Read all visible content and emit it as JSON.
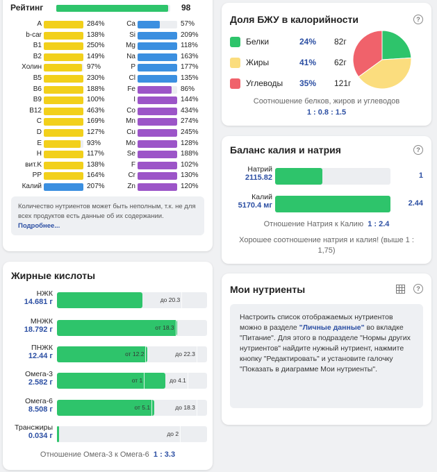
{
  "vitamins": {
    "rating_label": "Рейтинг",
    "rating_value": "98",
    "rating_fraction": 0.98,
    "left": [
      {
        "name": "A",
        "pct": "284%",
        "fill": 1.0,
        "color": "#f2d01b"
      },
      {
        "name": "b-car",
        "pct": "138%",
        "fill": 1.0,
        "color": "#f2d01b"
      },
      {
        "name": "B1",
        "pct": "250%",
        "fill": 1.0,
        "color": "#f2d01b"
      },
      {
        "name": "B2",
        "pct": "149%",
        "fill": 1.0,
        "color": "#f2d01b"
      },
      {
        "name": "Холин",
        "pct": "97%",
        "fill": 0.97,
        "color": "#f2d01b"
      },
      {
        "name": "B5",
        "pct": "230%",
        "fill": 1.0,
        "color": "#f2d01b"
      },
      {
        "name": "B6",
        "pct": "188%",
        "fill": 1.0,
        "color": "#f2d01b"
      },
      {
        "name": "B9",
        "pct": "100%",
        "fill": 1.0,
        "color": "#f2d01b"
      },
      {
        "name": "B12",
        "pct": "463%",
        "fill": 1.0,
        "color": "#f2d01b"
      },
      {
        "name": "C",
        "pct": "169%",
        "fill": 1.0,
        "color": "#f2d01b"
      },
      {
        "name": "D",
        "pct": "127%",
        "fill": 1.0,
        "color": "#f2d01b"
      },
      {
        "name": "E",
        "pct": "93%",
        "fill": 0.93,
        "color": "#f2d01b"
      },
      {
        "name": "H",
        "pct": "117%",
        "fill": 1.0,
        "color": "#f2d01b"
      },
      {
        "name": "вит.K",
        "pct": "138%",
        "fill": 1.0,
        "color": "#f2d01b"
      },
      {
        "name": "PP",
        "pct": "164%",
        "fill": 1.0,
        "color": "#f2d01b"
      },
      {
        "name": "Калий",
        "pct": "207%",
        "fill": 1.0,
        "color": "#3b8fe0"
      }
    ],
    "right": [
      {
        "name": "Ca",
        "pct": "57%",
        "fill": 0.57,
        "color": "#3b8fe0"
      },
      {
        "name": "Si",
        "pct": "209%",
        "fill": 1.0,
        "color": "#3b8fe0"
      },
      {
        "name": "Mg",
        "pct": "118%",
        "fill": 1.0,
        "color": "#3b8fe0"
      },
      {
        "name": "Na",
        "pct": "163%",
        "fill": 1.0,
        "color": "#3b8fe0"
      },
      {
        "name": "P",
        "pct": "177%",
        "fill": 1.0,
        "color": "#3b8fe0"
      },
      {
        "name": "Cl",
        "pct": "135%",
        "fill": 1.0,
        "color": "#3b8fe0"
      },
      {
        "name": "Fe",
        "pct": "86%",
        "fill": 0.86,
        "color": "#9c55c8"
      },
      {
        "name": "I",
        "pct": "144%",
        "fill": 1.0,
        "color": "#9c55c8"
      },
      {
        "name": "Co",
        "pct": "434%",
        "fill": 1.0,
        "color": "#9c55c8"
      },
      {
        "name": "Mn",
        "pct": "274%",
        "fill": 1.0,
        "color": "#9c55c8"
      },
      {
        "name": "Cu",
        "pct": "245%",
        "fill": 1.0,
        "color": "#9c55c8"
      },
      {
        "name": "Mo",
        "pct": "128%",
        "fill": 1.0,
        "color": "#9c55c8"
      },
      {
        "name": "Se",
        "pct": "188%",
        "fill": 1.0,
        "color": "#9c55c8"
      },
      {
        "name": "F",
        "pct": "102%",
        "fill": 1.0,
        "color": "#9c55c8"
      },
      {
        "name": "Cr",
        "pct": "130%",
        "fill": 1.0,
        "color": "#9c55c8"
      },
      {
        "name": "Zn",
        "pct": "120%",
        "fill": 1.0,
        "color": "#9c55c8"
      }
    ],
    "note_text": "Количество нутриентов может быть неполным, т.к. не для всех продуктов есть данные об их содержании.",
    "note_link": "Подробнее..."
  },
  "fatty_acids": {
    "title": "Жирные кислоты",
    "rows": [
      {
        "name": "НЖК",
        "amount": "14.681 г",
        "fill": 0.57,
        "marks": [
          {
            "text": "до 20.3",
            "at": 0.83
          }
        ]
      },
      {
        "name": "МНЖК",
        "amount": "18.792 г",
        "fill": 0.8,
        "marks": [
          {
            "text": "от 18.3",
            "at": 0.79
          }
        ]
      },
      {
        "name": "ПНЖК",
        "amount": "12.44 г",
        "fill": 0.6,
        "marks": [
          {
            "text": "от 12.2",
            "at": 0.59
          },
          {
            "text": "до 22.3",
            "at": 0.93
          }
        ]
      },
      {
        "name": "Омега-3",
        "amount": "2.582 г",
        "fill": 0.72,
        "marks": [
          {
            "text": "от 1",
            "at": 0.58
          },
          {
            "text": "до 4.1",
            "at": 0.87
          }
        ]
      },
      {
        "name": "Омега-6",
        "amount": "8.508 г",
        "fill": 0.65,
        "marks": [
          {
            "text": "от 5.1",
            "at": 0.63
          },
          {
            "text": "до 18.3",
            "at": 0.93
          }
        ]
      },
      {
        "name": "Трансжиры",
        "amount": "0.034 г",
        "fill": 0.01,
        "marks": [
          {
            "text": "до 2",
            "at": 0.82
          }
        ]
      }
    ],
    "ratio_label": "Отношение Омега-3 к Омега-6",
    "ratio_value": "1 : 3.3"
  },
  "bju": {
    "title": "Доля БЖУ в калорийности",
    "items": [
      {
        "name": "Белки",
        "pct": "24%",
        "grams": "82г",
        "color": "#2ec46b",
        "share": 0.24
      },
      {
        "name": "Жиры",
        "pct": "41%",
        "grams": "62г",
        "color": "#fbdd7e",
        "share": 0.41
      },
      {
        "name": "Углеводы",
        "pct": "35%",
        "grams": "121г",
        "color": "#f0626b",
        "share": 0.35
      }
    ],
    "caption": "Соотношение белков, жиров и углеводов",
    "ratio": "1 : 0.8 : 1.5"
  },
  "kna": {
    "title": "Баланс калия и натрия",
    "rows": [
      {
        "name": "Натрий",
        "amount": "2115.82",
        "fill": 0.41,
        "ratio": "1"
      },
      {
        "name": "Калий",
        "amount": "5170.4 мг",
        "fill": 1.0,
        "ratio": "2.44"
      }
    ],
    "ratio_label": "Отношение Натрия к Калию",
    "ratio_value": "1 : 2.4",
    "note": "Хорошее соотношение натрия и калия! (выше 1 : 1,75)"
  },
  "my": {
    "title": "Мои нутриенты",
    "text_a": "Настроить список отображаемых нутриентов можно в разделе ",
    "link": "\"Личные данные\"",
    "text_b": " во вкладке \"Питание\". Для этого в подразделе \"Нормы других нутриентов\" найдите нужный нутриент, нажмите кнопку \"Редактировать\" и установите галочку \"Показать в диаграмме Мои нутриенты\"."
  },
  "help_glyph": "?"
}
